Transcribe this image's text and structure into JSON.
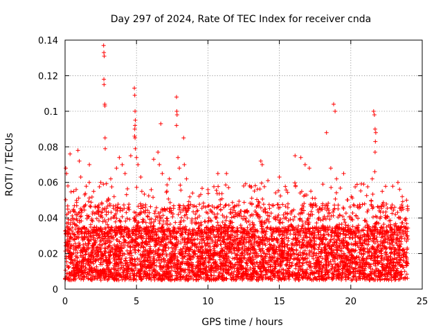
{
  "chart_data": {
    "type": "scatter",
    "title": "Day 297 of 2024, Rate Of TEC Index for receiver cnda",
    "xlabel": "GPS time / hours",
    "ylabel": "ROTI / TECUs",
    "xlim": [
      0,
      25
    ],
    "ylim": [
      0,
      0.14
    ],
    "xticks": [
      0,
      5,
      10,
      15,
      20,
      25
    ],
    "xtick_labels": [
      "0",
      "5",
      "10",
      "15",
      "20",
      "25"
    ],
    "yticks": [
      0,
      0.02,
      0.04,
      0.06,
      0.08,
      0.1,
      0.12,
      0.14
    ],
    "ytick_labels": [
      "0",
      "0.02",
      "0.04",
      "0.06",
      "0.08",
      "0.1",
      "0.12",
      "0.14"
    ],
    "grid": true,
    "marker": "+",
    "color": "#ff0000",
    "series": [
      {
        "name": "ROTI",
        "x_range": [
          0,
          24
        ],
        "dense_band": [
          0.005,
          0.035
        ],
        "points": [
          [
            0.05,
            0.068
          ],
          [
            0.1,
            0.065
          ],
          [
            0.2,
            0.058
          ],
          [
            0.35,
            0.076
          ],
          [
            0.6,
            0.055
          ],
          [
            0.9,
            0.078
          ],
          [
            1.0,
            0.072
          ],
          [
            1.1,
            0.063
          ],
          [
            1.7,
            0.07
          ],
          [
            2.0,
            0.055
          ],
          [
            2.5,
            0.06
          ],
          [
            2.7,
            0.137
          ],
          [
            2.72,
            0.133
          ],
          [
            2.74,
            0.131
          ],
          [
            2.72,
            0.118
          ],
          [
            2.73,
            0.115
          ],
          [
            2.78,
            0.104
          ],
          [
            2.79,
            0.103
          ],
          [
            2.8,
            0.085
          ],
          [
            2.81,
            0.079
          ],
          [
            3.2,
            0.062
          ],
          [
            3.6,
            0.068
          ],
          [
            3.8,
            0.074
          ],
          [
            4.0,
            0.07
          ],
          [
            4.2,
            0.065
          ],
          [
            4.6,
            0.075
          ],
          [
            4.85,
            0.113
          ],
          [
            4.88,
            0.109
          ],
          [
            4.9,
            0.1
          ],
          [
            4.92,
            0.095
          ],
          [
            4.9,
            0.092
          ],
          [
            4.88,
            0.09
          ],
          [
            4.87,
            0.086
          ],
          [
            4.9,
            0.085
          ],
          [
            4.92,
            0.079
          ],
          [
            5.0,
            0.074
          ],
          [
            5.1,
            0.07
          ],
          [
            5.3,
            0.063
          ],
          [
            6.2,
            0.073
          ],
          [
            6.5,
            0.077
          ],
          [
            6.6,
            0.07
          ],
          [
            6.7,
            0.093
          ],
          [
            6.8,
            0.065
          ],
          [
            7.3,
            0.062
          ],
          [
            7.8,
            0.108
          ],
          [
            7.82,
            0.1
          ],
          [
            7.84,
            0.098
          ],
          [
            7.8,
            0.092
          ],
          [
            7.9,
            0.074
          ],
          [
            8.0,
            0.068
          ],
          [
            8.3,
            0.085
          ],
          [
            8.35,
            0.07
          ],
          [
            8.5,
            0.062
          ],
          [
            10.7,
            0.065
          ],
          [
            11.3,
            0.065
          ],
          [
            12.5,
            0.058
          ],
          [
            13.7,
            0.072
          ],
          [
            13.8,
            0.07
          ],
          [
            14.2,
            0.061
          ],
          [
            15.0,
            0.063
          ],
          [
            16.1,
            0.075
          ],
          [
            16.5,
            0.074
          ],
          [
            16.8,
            0.07
          ],
          [
            17.1,
            0.068
          ],
          [
            18.3,
            0.088
          ],
          [
            18.6,
            0.068
          ],
          [
            18.8,
            0.104
          ],
          [
            18.9,
            0.1
          ],
          [
            19.0,
            0.062
          ],
          [
            19.5,
            0.065
          ],
          [
            21.6,
            0.1
          ],
          [
            21.65,
            0.098
          ],
          [
            21.7,
            0.09
          ],
          [
            21.75,
            0.088
          ],
          [
            21.72,
            0.083
          ],
          [
            21.7,
            0.077
          ],
          [
            21.68,
            0.066
          ],
          [
            21.5,
            0.062
          ],
          [
            22.2,
            0.055
          ],
          [
            23.3,
            0.06
          ],
          [
            23.6,
            0.052
          ],
          [
            23.9,
            0.05
          ]
        ]
      }
    ]
  }
}
